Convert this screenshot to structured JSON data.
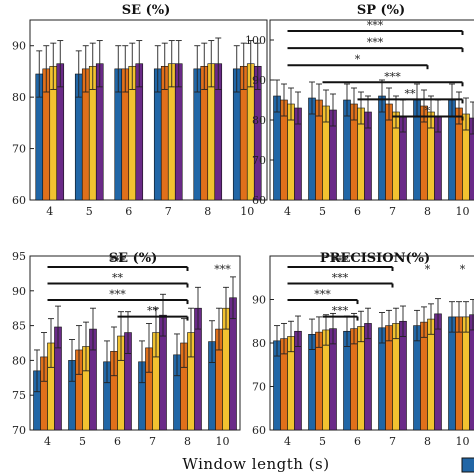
{
  "figure": {
    "xlabel": "Window length (s)"
  },
  "chart_data": [
    {
      "type": "bar",
      "title": "SE (%)",
      "categories": [
        "4",
        "5",
        "6",
        "7",
        "8",
        "10"
      ],
      "ylim": [
        60,
        95
      ],
      "yticks": [
        60,
        70,
        80,
        90
      ],
      "series": [
        {
          "color": "#2166a6",
          "values": [
            84.5,
            84.5,
            85.5,
            85.5,
            85.5,
            85.5
          ],
          "err": [
            4.5,
            4.5,
            4.5,
            4.5,
            4.5,
            4.5
          ]
        },
        {
          "color": "#e0701b",
          "values": [
            85.5,
            85.5,
            85.5,
            86.0,
            86.0,
            86.0
          ],
          "err": [
            4.5,
            4.5,
            4.5,
            4.5,
            4.5,
            4.5
          ]
        },
        {
          "color": "#f2c230",
          "values": [
            86.0,
            86.0,
            86.0,
            86.5,
            86.5,
            86.5
          ],
          "err": [
            4.5,
            4.5,
            4.5,
            4.5,
            4.5,
            4.5
          ]
        },
        {
          "color": "#6a2a88",
          "values": [
            86.5,
            86.5,
            86.5,
            86.5,
            86.5,
            86.0
          ],
          "err": [
            4.5,
            4.5,
            4.5,
            4.5,
            5.0,
            4.5
          ]
        }
      ],
      "significance": []
    },
    {
      "type": "bar",
      "title": "SP (%)",
      "categories": [
        "4",
        "5",
        "6",
        "7",
        "8",
        "10"
      ],
      "ylim": [
        60,
        105
      ],
      "yticks": [
        60,
        70,
        80,
        90,
        100
      ],
      "series": [
        {
          "color": "#2166a6",
          "values": [
            86.0,
            85.5,
            85.0,
            86.0,
            85.0,
            85.0
          ],
          "err": [
            4.0,
            4.0,
            4.0,
            4.0,
            4.0,
            4.0
          ]
        },
        {
          "color": "#e0701b",
          "values": [
            85.0,
            85.0,
            84.0,
            84.0,
            83.5,
            83.0
          ],
          "err": [
            4.0,
            4.0,
            4.0,
            4.0,
            4.0,
            4.0
          ]
        },
        {
          "color": "#f2c230",
          "values": [
            84.0,
            83.5,
            83.0,
            82.0,
            82.0,
            81.5
          ],
          "err": [
            4.0,
            4.0,
            4.0,
            4.0,
            4.0,
            4.0
          ]
        },
        {
          "color": "#6a2a88",
          "values": [
            83.0,
            82.5,
            82.0,
            81.0,
            81.0,
            80.5
          ],
          "err": [
            4.0,
            4.0,
            4.0,
            4.0,
            4.0,
            4.0
          ]
        }
      ],
      "significance": [
        {
          "from": "4",
          "to": "10",
          "label": "***",
          "color": "#111111"
        },
        {
          "from": "4",
          "to": "10",
          "label": "***",
          "color": "#111111"
        },
        {
          "from": "4",
          "to": "8",
          "label": "*",
          "color": "#111111"
        },
        {
          "from": "5",
          "to": "10",
          "label": "***",
          "color": "#111111"
        },
        {
          "from": "6",
          "to": "10",
          "label": "**",
          "color": "#111111"
        },
        {
          "from": "7",
          "to": "10",
          "label": "*",
          "color": "#111111"
        }
      ]
    },
    {
      "type": "bar",
      "title": "SE (%)",
      "categories": [
        "4",
        "5",
        "6",
        "7",
        "8",
        "10"
      ],
      "ylim": [
        70,
        95
      ],
      "yticks": [
        70,
        75,
        80,
        85,
        90,
        95
      ],
      "series": [
        {
          "color": "#2166a6",
          "values": [
            78.5,
            80.0,
            79.8,
            79.8,
            80.8,
            82.7
          ],
          "err": [
            3.0,
            3.0,
            3.0,
            3.0,
            3.0,
            3.0
          ]
        },
        {
          "color": "#e0701b",
          "values": [
            80.5,
            81.5,
            81.3,
            81.8,
            82.5,
            84.5
          ],
          "err": [
            3.5,
            3.5,
            3.5,
            3.5,
            3.5,
            3.0
          ]
        },
        {
          "color": "#f2c230",
          "values": [
            82.5,
            82.0,
            83.5,
            84.0,
            84.0,
            87.5
          ],
          "err": [
            3.5,
            3.5,
            3.5,
            3.5,
            3.5,
            3.0
          ]
        },
        {
          "color": "#6a2a88",
          "values": [
            84.8,
            84.5,
            84.0,
            86.5,
            87.5,
            89.0
          ],
          "err": [
            3.0,
            3.0,
            3.0,
            3.0,
            3.0,
            3.0
          ]
        }
      ],
      "significance": [
        {
          "from": "4",
          "to": "8",
          "label": "***",
          "color": "#111111"
        },
        {
          "from": "4",
          "to": "8",
          "label": "**",
          "color": "#111111"
        },
        {
          "from": "4",
          "to": "8",
          "label": "***",
          "color": "#111111"
        },
        {
          "from": "6",
          "to": "8",
          "label": "**",
          "color": "#111111"
        },
        {
          "from": "10",
          "to": "10",
          "label": "***",
          "color": "#e02020"
        }
      ]
    },
    {
      "type": "bar",
      "title": "PRECISION(%)",
      "categories": [
        "4",
        "5",
        "6",
        "7",
        "8",
        "10"
      ],
      "ylim": [
        60,
        100
      ],
      "yticks": [
        60,
        70,
        80,
        90
      ],
      "series": [
        {
          "color": "#2166a6",
          "values": [
            80.5,
            82.0,
            82.7,
            83.5,
            84.0,
            86.0
          ],
          "err": [
            3.5,
            3.5,
            3.5,
            3.5,
            3.5,
            3.5
          ]
        },
        {
          "color": "#e0701b",
          "values": [
            81.0,
            82.5,
            83.3,
            84.0,
            84.8,
            86.0
          ],
          "err": [
            3.5,
            3.5,
            3.5,
            3.5,
            3.5,
            3.5
          ]
        },
        {
          "color": "#f2c230",
          "values": [
            81.5,
            83.0,
            83.8,
            84.5,
            85.5,
            86.0
          ],
          "err": [
            3.5,
            3.5,
            3.5,
            3.5,
            3.5,
            3.5
          ]
        },
        {
          "color": "#6a2a88",
          "values": [
            82.7,
            83.3,
            84.5,
            85.0,
            86.7,
            86.5
          ],
          "err": [
            3.5,
            3.5,
            3.5,
            3.5,
            3.5,
            3.5
          ]
        }
      ],
      "significance": [
        {
          "from": "4",
          "to": "7",
          "label": "***",
          "color": "#111111"
        },
        {
          "from": "4",
          "to": "7",
          "label": "***",
          "color": "#111111"
        },
        {
          "from": "4",
          "to": "6",
          "label": "***",
          "color": "#111111"
        },
        {
          "from": "5",
          "to": "6",
          "label": "***",
          "color": "#111111"
        },
        {
          "from": "8",
          "to": "8",
          "label": "*",
          "color": "#e02020"
        },
        {
          "from": "10",
          "to": "10",
          "label": "*",
          "color": "#e02020"
        }
      ]
    }
  ]
}
